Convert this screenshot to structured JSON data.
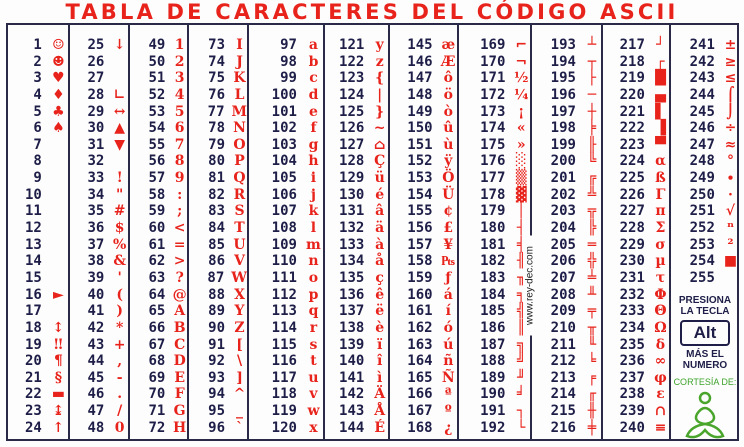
{
  "title": "TABLA DE CARACTERES DEL CÓDIGO ASCII",
  "columns": [
    {
      "rows": [
        [
          "1",
          "☺"
        ],
        [
          "2",
          "☻"
        ],
        [
          "3",
          "♥"
        ],
        [
          "4",
          "♦"
        ],
        [
          "5",
          "♣"
        ],
        [
          "6",
          "♠"
        ],
        [
          "7",
          ""
        ],
        [
          "8",
          ""
        ],
        [
          "9",
          ""
        ],
        [
          "10",
          ""
        ],
        [
          "11",
          ""
        ],
        [
          "12",
          ""
        ],
        [
          "13",
          ""
        ],
        [
          "14",
          ""
        ],
        [
          "15",
          ""
        ],
        [
          "16",
          "►"
        ],
        [
          "17",
          ""
        ],
        [
          "18",
          "↕"
        ],
        [
          "19",
          "‼"
        ],
        [
          "20",
          "¶"
        ],
        [
          "21",
          "§"
        ],
        [
          "22",
          "▬"
        ],
        [
          "23",
          "↨"
        ],
        [
          "24",
          "↑"
        ]
      ]
    },
    {
      "rows": [
        [
          "25",
          "↓"
        ],
        [
          "26",
          ""
        ],
        [
          "27",
          ""
        ],
        [
          "28",
          "∟"
        ],
        [
          "29",
          "↔"
        ],
        [
          "30",
          "▲"
        ],
        [
          "31",
          "▼"
        ],
        [
          "32",
          ""
        ],
        [
          "33",
          "!"
        ],
        [
          "34",
          "\""
        ],
        [
          "35",
          "#"
        ],
        [
          "36",
          "$"
        ],
        [
          "37",
          "%"
        ],
        [
          "38",
          "&"
        ],
        [
          "39",
          "'"
        ],
        [
          "40",
          "("
        ],
        [
          "41",
          ")"
        ],
        [
          "42",
          "*"
        ],
        [
          "43",
          "+"
        ],
        [
          "44",
          ","
        ],
        [
          "45",
          "-"
        ],
        [
          "46",
          "."
        ],
        [
          "47",
          "/"
        ],
        [
          "48",
          "0"
        ]
      ]
    },
    {
      "rows": [
        [
          "49",
          "1"
        ],
        [
          "50",
          "2"
        ],
        [
          "51",
          "3"
        ],
        [
          "52",
          "4"
        ],
        [
          "53",
          "5"
        ],
        [
          "54",
          "6"
        ],
        [
          "55",
          "7"
        ],
        [
          "56",
          "8"
        ],
        [
          "57",
          "9"
        ],
        [
          "58",
          ":"
        ],
        [
          "59",
          ";"
        ],
        [
          "60",
          "<"
        ],
        [
          "61",
          "="
        ],
        [
          "62",
          ">"
        ],
        [
          "63",
          "?"
        ],
        [
          "64",
          "@"
        ],
        [
          "65",
          "A"
        ],
        [
          "66",
          "B"
        ],
        [
          "67",
          "C"
        ],
        [
          "68",
          "D"
        ],
        [
          "69",
          "E"
        ],
        [
          "70",
          "F"
        ],
        [
          "71",
          "G"
        ],
        [
          "72",
          "H"
        ]
      ]
    },
    {
      "rows": [
        [
          "73",
          "I"
        ],
        [
          "74",
          "J"
        ],
        [
          "75",
          "K"
        ],
        [
          "76",
          "L"
        ],
        [
          "77",
          "M"
        ],
        [
          "78",
          "N"
        ],
        [
          "79",
          "O"
        ],
        [
          "80",
          "P"
        ],
        [
          "81",
          "Q"
        ],
        [
          "82",
          "R"
        ],
        [
          "83",
          "S"
        ],
        [
          "84",
          "T"
        ],
        [
          "85",
          "U"
        ],
        [
          "86",
          "V"
        ],
        [
          "87",
          "W"
        ],
        [
          "88",
          "X"
        ],
        [
          "89",
          "Y"
        ],
        [
          "90",
          "Z"
        ],
        [
          "91",
          "["
        ],
        [
          "92",
          "\\"
        ],
        [
          "93",
          "]"
        ],
        [
          "94",
          "^"
        ],
        [
          "95",
          "_"
        ],
        [
          "96",
          "`"
        ]
      ]
    },
    {
      "rows": [
        [
          "97",
          "a"
        ],
        [
          "98",
          "b"
        ],
        [
          "99",
          "c"
        ],
        [
          "100",
          "d"
        ],
        [
          "101",
          "e"
        ],
        [
          "102",
          "f"
        ],
        [
          "103",
          "g"
        ],
        [
          "104",
          "h"
        ],
        [
          "105",
          "i"
        ],
        [
          "106",
          "j"
        ],
        [
          "107",
          "k"
        ],
        [
          "108",
          "l"
        ],
        [
          "109",
          "m"
        ],
        [
          "110",
          "n"
        ],
        [
          "111",
          "o"
        ],
        [
          "112",
          "p"
        ],
        [
          "113",
          "q"
        ],
        [
          "114",
          "r"
        ],
        [
          "115",
          "s"
        ],
        [
          "116",
          "t"
        ],
        [
          "117",
          "u"
        ],
        [
          "118",
          "v"
        ],
        [
          "119",
          "w"
        ],
        [
          "120",
          "x"
        ]
      ]
    },
    {
      "rows": [
        [
          "121",
          "y"
        ],
        [
          "122",
          "z"
        ],
        [
          "123",
          "{"
        ],
        [
          "124",
          "|"
        ],
        [
          "125",
          "}"
        ],
        [
          "126",
          "~"
        ],
        [
          "127",
          "⌂"
        ],
        [
          "128",
          "Ç"
        ],
        [
          "129",
          "ü"
        ],
        [
          "130",
          "é"
        ],
        [
          "131",
          "â"
        ],
        [
          "132",
          "ä"
        ],
        [
          "133",
          "à"
        ],
        [
          "134",
          "å"
        ],
        [
          "135",
          "ç"
        ],
        [
          "136",
          "ê"
        ],
        [
          "137",
          "ë"
        ],
        [
          "138",
          "è"
        ],
        [
          "139",
          "ï"
        ],
        [
          "140",
          "î"
        ],
        [
          "141",
          "ì"
        ],
        [
          "142",
          "Ä"
        ],
        [
          "143",
          "Å"
        ],
        [
          "144",
          "É"
        ]
      ]
    },
    {
      "rows": [
        [
          "145",
          "æ"
        ],
        [
          "146",
          "Æ"
        ],
        [
          "147",
          "ô"
        ],
        [
          "148",
          "ö"
        ],
        [
          "149",
          "ò"
        ],
        [
          "150",
          "û"
        ],
        [
          "151",
          "ù"
        ],
        [
          "152",
          "ÿ"
        ],
        [
          "153",
          "Ö"
        ],
        [
          "154",
          "Ü"
        ],
        [
          "155",
          "¢"
        ],
        [
          "156",
          "£"
        ],
        [
          "157",
          "¥"
        ],
        [
          "158",
          "₧"
        ],
        [
          "159",
          "ƒ"
        ],
        [
          "160",
          "á"
        ],
        [
          "161",
          "í"
        ],
        [
          "162",
          "ó"
        ],
        [
          "163",
          "ú"
        ],
        [
          "164",
          "ñ"
        ],
        [
          "165",
          "Ñ"
        ],
        [
          "166",
          "ª"
        ],
        [
          "167",
          "º"
        ],
        [
          "168",
          "¿"
        ]
      ]
    },
    {
      "rows": [
        [
          "169",
          "⌐"
        ],
        [
          "170",
          "¬"
        ],
        [
          "171",
          "½"
        ],
        [
          "172",
          "¼"
        ],
        [
          "173",
          "¡"
        ],
        [
          "174",
          "«"
        ],
        [
          "175",
          "»"
        ],
        [
          "176",
          "░"
        ],
        [
          "177",
          "▒"
        ],
        [
          "178",
          "▓"
        ],
        [
          "179",
          "│"
        ],
        [
          "180",
          "┤"
        ],
        [
          "181",
          "╡"
        ],
        [
          "182",
          "╢"
        ],
        [
          "183",
          "╖"
        ],
        [
          "184",
          "╕"
        ],
        [
          "185",
          "╣"
        ],
        [
          "186",
          "║"
        ],
        [
          "187",
          "╗"
        ],
        [
          "188",
          "╝"
        ],
        [
          "189",
          "╜"
        ],
        [
          "190",
          "╛"
        ],
        [
          "191",
          "┐"
        ],
        [
          "192",
          "└"
        ]
      ]
    },
    {
      "rows": [
        [
          "193",
          "┴"
        ],
        [
          "194",
          "┬"
        ],
        [
          "195",
          "├"
        ],
        [
          "196",
          "─"
        ],
        [
          "197",
          "┼"
        ],
        [
          "198",
          "╞"
        ],
        [
          "199",
          "╟"
        ],
        [
          "200",
          "╚"
        ],
        [
          "201",
          "╔"
        ],
        [
          "202",
          "╩"
        ],
        [
          "203",
          "╦"
        ],
        [
          "204",
          "╠"
        ],
        [
          "205",
          "═"
        ],
        [
          "206",
          "╬"
        ],
        [
          "207",
          "╧"
        ],
        [
          "208",
          "╨"
        ],
        [
          "209",
          "╤"
        ],
        [
          "210",
          "╥"
        ],
        [
          "211",
          "╙"
        ],
        [
          "212",
          "╘"
        ],
        [
          "213",
          "╒"
        ],
        [
          "214",
          "╓"
        ],
        [
          "215",
          "╫"
        ],
        [
          "216",
          "╪"
        ]
      ]
    },
    {
      "rows": [
        [
          "217",
          "┘"
        ],
        [
          "218",
          "┌"
        ],
        [
          "219",
          "█"
        ],
        [
          "220",
          "▄"
        ],
        [
          "221",
          "▌"
        ],
        [
          "222",
          "▐"
        ],
        [
          "223",
          "▀"
        ],
        [
          "224",
          "α"
        ],
        [
          "225",
          "ß"
        ],
        [
          "226",
          "Γ"
        ],
        [
          "227",
          "π"
        ],
        [
          "228",
          "Σ"
        ],
        [
          "229",
          "σ"
        ],
        [
          "230",
          "µ"
        ],
        [
          "231",
          "τ"
        ],
        [
          "232",
          "Φ"
        ],
        [
          "233",
          "Θ"
        ],
        [
          "234",
          "Ω"
        ],
        [
          "235",
          "δ"
        ],
        [
          "236",
          "∞"
        ],
        [
          "237",
          "φ"
        ],
        [
          "238",
          "ε"
        ],
        [
          "239",
          "∩"
        ],
        [
          "240",
          "≡"
        ]
      ]
    },
    {
      "rows": [
        [
          "241",
          "±"
        ],
        [
          "242",
          "≥"
        ],
        [
          "243",
          "≤"
        ],
        [
          "244",
          "⌠"
        ],
        [
          "245",
          "⌡"
        ],
        [
          "246",
          "÷"
        ],
        [
          "247",
          "≈"
        ],
        [
          "248",
          "°"
        ],
        [
          "249",
          "∙"
        ],
        [
          "250",
          "·"
        ],
        [
          "251",
          "√"
        ],
        [
          "252",
          "ⁿ"
        ],
        [
          "253",
          "²"
        ],
        [
          "254",
          "■"
        ],
        [
          "255",
          ""
        ]
      ]
    }
  ],
  "panel": {
    "press_line1": "PRESIONA",
    "press_line2": "LA TECLA",
    "key": "Alt",
    "plus_line1": "MÁS EL",
    "plus_line2": "NUMERO",
    "courtesy": "CORTESÍA DE:",
    "logo_icon": "green-meditating-figure-logo"
  },
  "watermark": "www.rey-dec.com",
  "colors": {
    "title": "#e8231c",
    "numbers": "#1e1e48",
    "characters": "#e8231c",
    "courtesy": "#3da32a"
  }
}
